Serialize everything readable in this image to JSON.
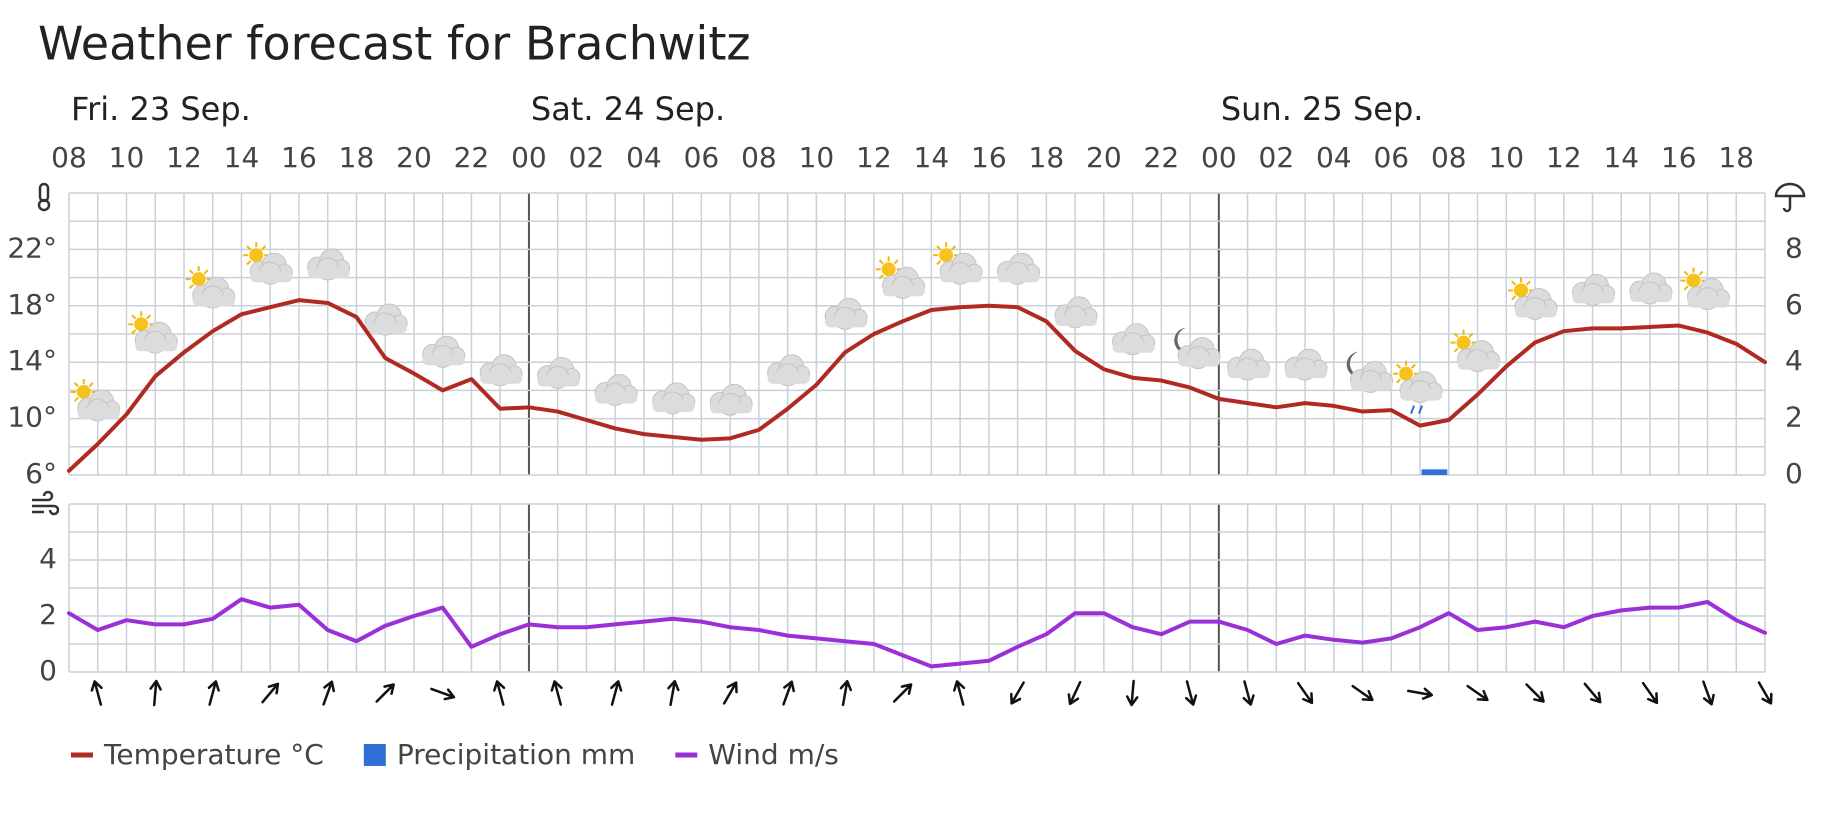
{
  "chart_data": {
    "type": "line",
    "title": "Weather forecast for Brachwitz",
    "day_labels": [
      "Fri. 23 Sep.",
      "Sat. 24 Sep.",
      "Sun. 25 Sep."
    ],
    "categories": [
      "08",
      null,
      "10",
      null,
      "12",
      null,
      "14",
      null,
      "16",
      null,
      "18",
      null,
      "20",
      null,
      "22",
      null,
      "00",
      null,
      "02",
      null,
      "04",
      null,
      "06",
      null,
      "08",
      null,
      "10",
      null,
      "12",
      null,
      "14",
      null,
      "16",
      null,
      "18",
      null,
      "20",
      null,
      "22",
      null,
      "00",
      null,
      "02",
      null,
      "04",
      null,
      "06",
      null,
      "08",
      null,
      "10",
      null,
      "12",
      null,
      "14",
      null,
      "16",
      null,
      "18",
      null
    ],
    "series": [
      {
        "name": "Temperature °C",
        "color": "#b02a22",
        "axis": "y",
        "values": [
          6.3,
          8.2,
          10.3,
          13,
          14.7,
          16.2,
          17.4,
          17.9,
          18.4,
          18.2,
          17.2,
          14.3,
          13.2,
          12,
          12.8,
          10.7,
          10.8,
          10.5,
          9.9,
          9.3,
          8.9,
          8.7,
          8.5,
          8.6,
          9.2,
          10.7,
          12.4,
          14.7,
          16,
          16.9,
          17.7,
          17.9,
          18,
          17.9,
          16.9,
          14.8,
          13.5,
          12.9,
          12.7,
          12.2,
          11.4,
          11.1,
          10.8,
          11.1,
          10.9,
          10.5,
          10.6,
          9.5,
          9.9,
          11.7,
          13.7,
          15.4,
          16.2,
          16.4,
          16.4,
          16.5,
          16.6,
          16.1,
          15.3,
          14
        ]
      },
      {
        "name": "Precipitation mm",
        "color": "#2f6fd6",
        "axis": "y2",
        "values": [
          0,
          0,
          0,
          0,
          0,
          0,
          0,
          0,
          0,
          0,
          0,
          0,
          0,
          0,
          0,
          0,
          0,
          0,
          0,
          0,
          0,
          0,
          0,
          0,
          0,
          0,
          0,
          0,
          0,
          0,
          0,
          0,
          0,
          0,
          0,
          0,
          0,
          0,
          0,
          0,
          0,
          0,
          0,
          0,
          0,
          0,
          0,
          0.2,
          0,
          0,
          0,
          0,
          0,
          0,
          0,
          0,
          0,
          0,
          0,
          0
        ]
      },
      {
        "name": "Wind m/s",
        "color": "#9b30d9",
        "axis": "y3",
        "values": [
          2.1,
          1.5,
          1.85,
          1.7,
          1.7,
          1.9,
          2.6,
          2.3,
          2.4,
          1.5,
          1.1,
          1.65,
          2,
          2.3,
          0.9,
          1.35,
          1.7,
          1.6,
          1.6,
          1.7,
          1.8,
          1.9,
          1.8,
          1.6,
          1.5,
          1.3,
          1.2,
          1.1,
          1,
          0.6,
          0.2,
          0.3,
          0.4,
          0.9,
          1.35,
          2.1,
          2.1,
          1.6,
          1.35,
          1.8,
          1.8,
          1.5,
          1,
          1.3,
          1.15,
          1.05,
          1.2,
          1.6,
          2.1,
          1.5,
          1.6,
          1.8,
          1.6,
          2,
          2.2,
          2.3,
          2.3,
          2.5,
          1.85,
          1.4
        ]
      }
    ],
    "wind_direction": [
      null,
      -15,
      null,
      5,
      null,
      15,
      null,
      40,
      null,
      20,
      null,
      45,
      null,
      110,
      null,
      -15,
      null,
      -15,
      null,
      15,
      null,
      10,
      null,
      30,
      null,
      20,
      null,
      10,
      null,
      45,
      null,
      -15,
      null,
      210,
      null,
      205,
      null,
      185,
      null,
      165,
      null,
      165,
      null,
      145,
      null,
      125,
      null,
      100,
      null,
      125,
      null,
      135,
      null,
      140,
      null,
      145,
      null,
      160,
      null,
      150
    ],
    "ylim": [
      6,
      26
    ],
    "yticks": [
      {
        "value": 6,
        "label": "6°"
      },
      {
        "value": 10,
        "label": "10°"
      },
      {
        "value": 14,
        "label": "14°"
      },
      {
        "value": 18,
        "label": "18°"
      },
      {
        "value": 22,
        "label": "22°"
      }
    ],
    "y2lim": [
      0,
      10
    ],
    "y2ticks": [
      0,
      2,
      4,
      6,
      8
    ],
    "y3lim": [
      0,
      6
    ],
    "y3ticks": [
      0,
      2,
      4
    ],
    "grid": true,
    "legend": "bottom-left"
  }
}
